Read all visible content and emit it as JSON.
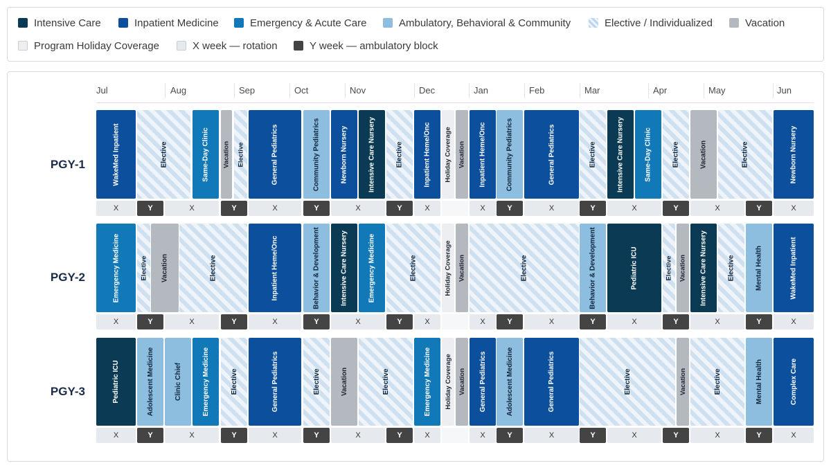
{
  "legend": [
    {
      "label": "Intensive Care",
      "color": "#0b3a55"
    },
    {
      "label": "Inpatient Medicine",
      "color": "#0c4f9c"
    },
    {
      "label": "Emergency & Acute Care",
      "color": "#1279b8"
    },
    {
      "label": "Ambulatory, Behavioral & Community",
      "color": "#8dbedf"
    },
    {
      "label": "Elective / Individualized",
      "color": "striped-light-blue"
    },
    {
      "label": "Vacation",
      "color": "#b4b8bf"
    },
    {
      "label": "Program Holiday Coverage",
      "color": "#eceef1"
    },
    {
      "label": "X week — rotation",
      "color": "#e6e9ee"
    },
    {
      "label": "Y week — ambulatory block",
      "color": "#444444"
    }
  ],
  "months": [
    "Jul",
    "Aug",
    "Sep",
    "Oct",
    "Nov",
    "Dec",
    "Jan",
    "Feb",
    "Mar",
    "Apr",
    "May",
    "Jun"
  ],
  "rows": [
    {
      "name": "PGY-1",
      "rotations": [
        {
          "label": "WakeMed Inpatient",
          "category": "inpatient"
        },
        {
          "label": "Elective",
          "category": "elective"
        },
        {
          "label": "Same-Day Clinic",
          "category": "emergency"
        },
        {
          "label": "Vacation",
          "category": "vacation"
        },
        {
          "label": "Elective",
          "category": "elective"
        },
        {
          "label": "General Pediatrics",
          "category": "inpatient"
        },
        {
          "label": "Community Pediatrics",
          "category": "ambulatory"
        },
        {
          "label": "Newborn Nursery",
          "category": "inpatient"
        },
        {
          "label": "Intensive Care Nursery",
          "category": "icu"
        },
        {
          "label": "Elective",
          "category": "elective"
        },
        {
          "label": "Inpatient Heme/Onc",
          "category": "inpatient"
        },
        {
          "label": "Holiday Coverage",
          "category": "holiday"
        },
        {
          "label": "Vacation",
          "category": "vacation"
        },
        {
          "label": "Inpatient Heme/Onc",
          "category": "inpatient"
        },
        {
          "label": "Community Pediatrics",
          "category": "ambulatory"
        },
        {
          "label": "General Pediatrics",
          "category": "inpatient"
        },
        {
          "label": "Elective",
          "category": "elective"
        },
        {
          "label": "Intensive Care Nursery",
          "category": "icu"
        },
        {
          "label": "Same-Day Clinic",
          "category": "emergency"
        },
        {
          "label": "Elective",
          "category": "elective"
        },
        {
          "label": "Vacation",
          "category": "vacation"
        },
        {
          "label": "Elective",
          "category": "elective"
        },
        {
          "label": "Newborn Nursery",
          "category": "inpatient"
        }
      ]
    },
    {
      "name": "PGY-2",
      "rotations": [
        {
          "label": "Emergency Medicine",
          "category": "emergency"
        },
        {
          "label": "Elective",
          "category": "elective"
        },
        {
          "label": "Vacation",
          "category": "vacation"
        },
        {
          "label": "Elective",
          "category": "elective"
        },
        {
          "label": "Inpatient Heme/Onc",
          "category": "inpatient"
        },
        {
          "label": "Behavior & Development",
          "category": "ambulatory"
        },
        {
          "label": "Intensive Care Nursery",
          "category": "icu"
        },
        {
          "label": "Emergency Medicine",
          "category": "emergency"
        },
        {
          "label": "Elective",
          "category": "elective"
        },
        {
          "label": "Holiday Coverage",
          "category": "holiday"
        },
        {
          "label": "Vacation",
          "category": "vacation"
        },
        {
          "label": "Elective",
          "category": "elective"
        },
        {
          "label": "Behavior & Development",
          "category": "ambulatory"
        },
        {
          "label": "Pediatric ICU",
          "category": "icu"
        },
        {
          "label": "Elective",
          "category": "elective"
        },
        {
          "label": "Vacation",
          "category": "vacation"
        },
        {
          "label": "Intensive Care Nursery",
          "category": "icu"
        },
        {
          "label": "Elective",
          "category": "elective"
        },
        {
          "label": "Mental Health",
          "category": "ambulatory"
        },
        {
          "label": "WakeMed Inpatient",
          "category": "inpatient"
        }
      ]
    },
    {
      "name": "PGY-3",
      "rotations": [
        {
          "label": "Pediatric ICU",
          "category": "icu"
        },
        {
          "label": "Adolescent Medicine",
          "category": "ambulatory"
        },
        {
          "label": "Clinic Chief",
          "category": "ambulatory"
        },
        {
          "label": "Emergency Medicine",
          "category": "emergency"
        },
        {
          "label": "Elective",
          "category": "elective"
        },
        {
          "label": "General Pediatrics",
          "category": "inpatient"
        },
        {
          "label": "Elective",
          "category": "elective"
        },
        {
          "label": "Vacation",
          "category": "vacation"
        },
        {
          "label": "Elective",
          "category": "elective"
        },
        {
          "label": "Emergency Medicine",
          "category": "emergency"
        },
        {
          "label": "Holiday Coverage",
          "category": "holiday"
        },
        {
          "label": "Vacation",
          "category": "vacation"
        },
        {
          "label": "General Pediatrics",
          "category": "inpatient"
        },
        {
          "label": "Adolescent Medicine",
          "category": "ambulatory"
        },
        {
          "label": "General Pediatrics",
          "category": "inpatient"
        },
        {
          "label": "Elective",
          "category": "elective"
        },
        {
          "label": "Vacation",
          "category": "vacation"
        },
        {
          "label": "Elective",
          "category": "elective"
        },
        {
          "label": "Mental Health",
          "category": "ambulatory"
        },
        {
          "label": "Complex Care",
          "category": "inpatient"
        }
      ]
    }
  ],
  "week_pattern": [
    "X",
    "Y",
    "X",
    "Y",
    "X",
    "Y",
    "X",
    "Y",
    "X",
    "",
    "X",
    "Y",
    "X",
    "Y",
    "X",
    "Y",
    "X",
    "Y",
    "X"
  ]
}
